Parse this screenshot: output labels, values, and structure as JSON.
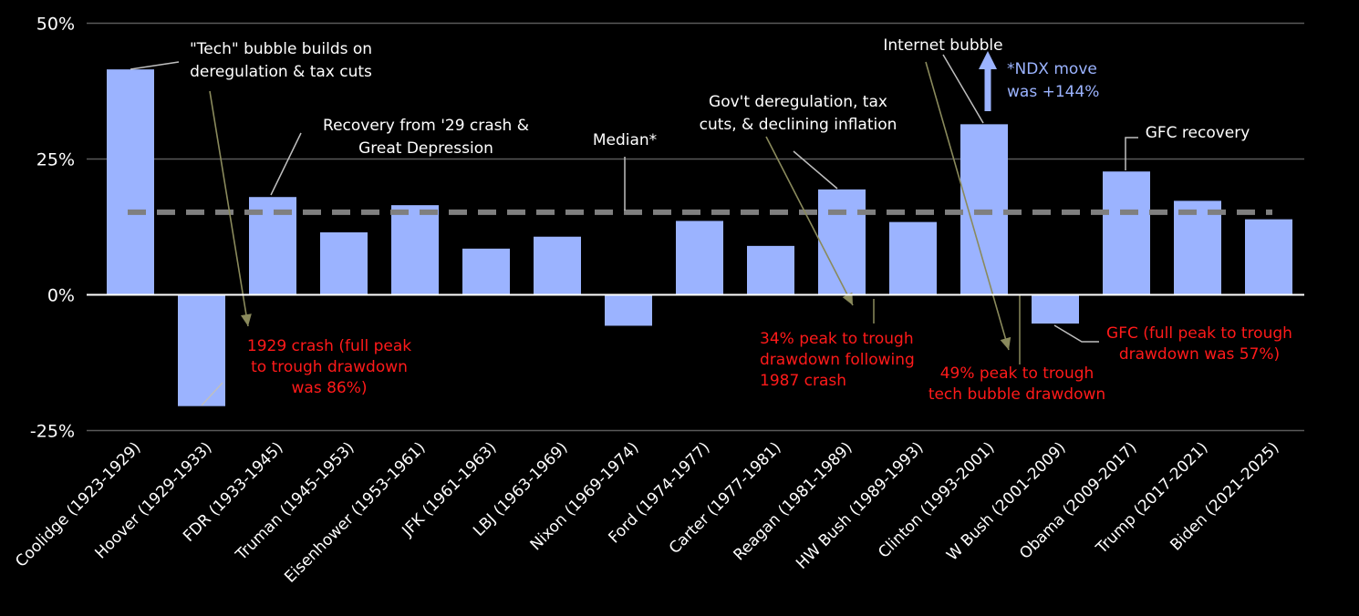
{
  "colors": {
    "background": "#000000",
    "bar": "#9bb3ff",
    "gridline": "#5a5a5a",
    "zero_line": "#ffffff",
    "median_line": "#7f7f7f",
    "leader_white": "#bfbfbf",
    "leader_olive": "#8a8a5c",
    "text_white": "#ffffff",
    "text_red": "#ff1a1a",
    "text_blue": "#9bb3ff"
  },
  "chart_data": {
    "type": "bar",
    "title": "",
    "xlabel": "",
    "ylabel": "",
    "ylim": [
      -25,
      50
    ],
    "yticks": [
      {
        "value": 50,
        "label": "50%"
      },
      {
        "value": 25,
        "label": "25%"
      },
      {
        "value": 0,
        "label": "0%"
      },
      {
        "value": -25,
        "label": "-25%"
      }
    ],
    "grid": true,
    "legend": "none",
    "categories": [
      "Coolidge (1923-1929)",
      "Hoover (1929-1933)",
      "FDR (1933-1945)",
      "Truman (1945-1953)",
      "Eisenhower (1953-1961)",
      "JFK (1961-1963)",
      "LBJ (1963-1969)",
      "Nixon (1969-1974)",
      "Ford (1974-1977)",
      "Carter (1977-1981)",
      "Reagan (1981-1989)",
      "HW Bush (1989-1993)",
      "Clinton (1993-2001)",
      "W Bush (2001-2009)",
      "Obama (2009-2017)",
      "Trump (2017-2021)",
      "Biden (2021-2025)"
    ],
    "values": [
      41.5,
      -20.5,
      18,
      11.5,
      16.5,
      8.5,
      10.7,
      -5.7,
      13.6,
      9,
      19.4,
      13.4,
      31.4,
      -5.3,
      22.7,
      17.3,
      13.9
    ],
    "median": {
      "value": 15.2,
      "label": "Median*"
    },
    "annotations": [
      {
        "key": "tech",
        "lines": [
          "\"Tech\" bubble builds on",
          "deregulation & tax cuts"
        ],
        "color": "white"
      },
      {
        "key": "recovery29",
        "lines": [
          "Recovery from '29 crash &",
          "Great Depression"
        ],
        "color": "white"
      },
      {
        "key": "govdereg",
        "lines": [
          "Gov't deregulation, tax",
          "cuts, & declining inflation"
        ],
        "color": "white"
      },
      {
        "key": "internet",
        "lines": [
          "Internet bubble"
        ],
        "color": "white"
      },
      {
        "key": "ndx",
        "lines": [
          "*NDX move",
          "was +144%"
        ],
        "color": "blue"
      },
      {
        "key": "gfcrec",
        "lines": [
          "GFC recovery"
        ],
        "color": "white"
      },
      {
        "key": "crash1929",
        "lines": [
          "1929 crash (full peak",
          "to trough drawdown",
          "was 86%)"
        ],
        "color": "red"
      },
      {
        "key": "crash1987",
        "lines": [
          "34% peak to trough",
          "drawdown following",
          "1987 crash"
        ],
        "color": "red"
      },
      {
        "key": "techdd",
        "lines": [
          "49% peak to trough",
          "tech bubble drawdown"
        ],
        "color": "red"
      },
      {
        "key": "gfc",
        "lines": [
          "GFC (full peak to trough",
          "drawdown was 57%)"
        ],
        "color": "red"
      }
    ]
  }
}
